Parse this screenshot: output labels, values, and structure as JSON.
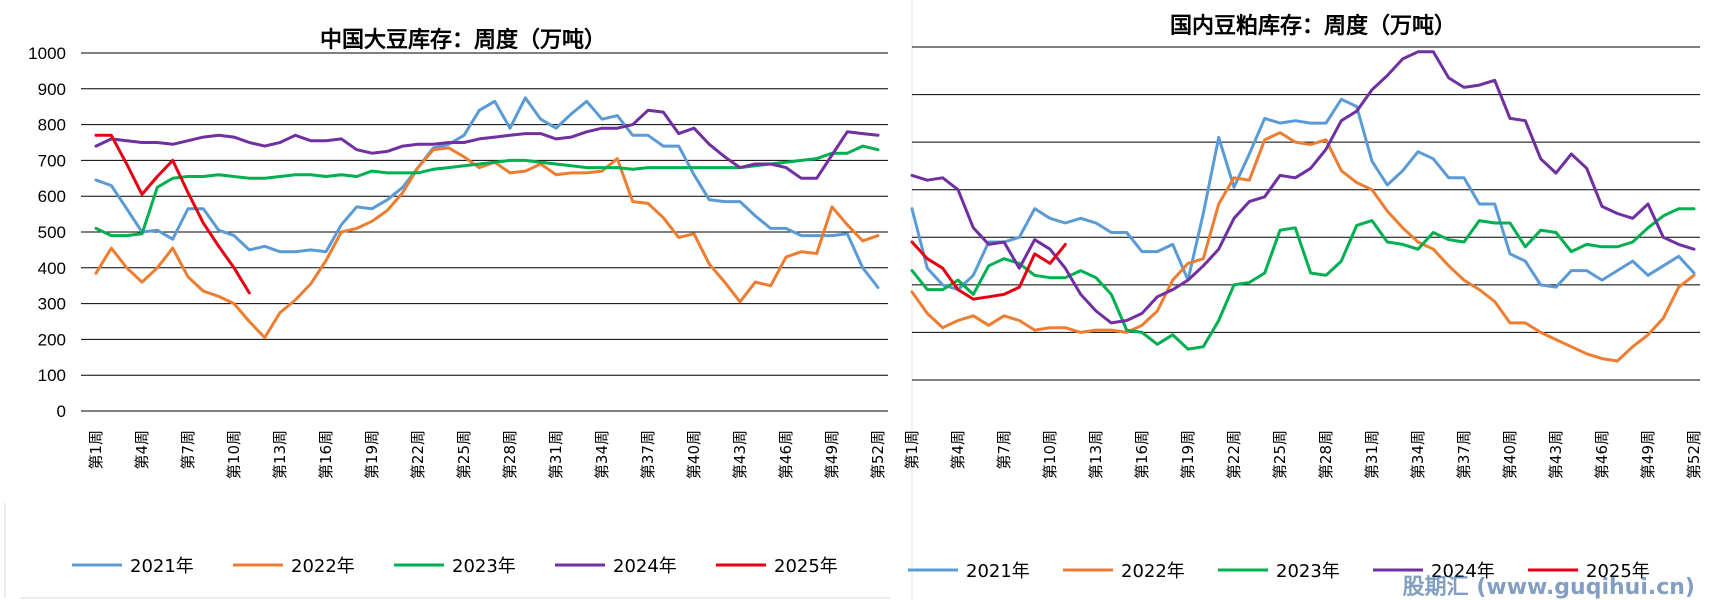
{
  "watermark": "股期汇 (www.guqihui.cn)",
  "chart_data": [
    {
      "type": "line",
      "title": "中国大豆库存：周度（万吨）",
      "ylim": [
        0,
        1000
      ],
      "yticks": [
        0,
        100,
        200,
        300,
        400,
        500,
        600,
        700,
        800,
        900,
        1000
      ],
      "grid": true,
      "legend_position": "bottom",
      "xtick_labels": [
        "第1周",
        "第4周",
        "第7周",
        "第10周",
        "第13周",
        "第16周",
        "第19周",
        "第22周",
        "第25周",
        "第28周",
        "第31周",
        "第34周",
        "第37周",
        "第40周",
        "第43周",
        "第46周",
        "第49周",
        "第52周"
      ],
      "series": [
        {
          "name": "2021年",
          "color": "#5b9bd5",
          "values": [
            645,
            630,
            565,
            500,
            505,
            480,
            565,
            565,
            505,
            490,
            450,
            460,
            445,
            445,
            450,
            445,
            520,
            570,
            565,
            590,
            625,
            680,
            735,
            745,
            770,
            840,
            865,
            790,
            875,
            815,
            790,
            830,
            865,
            815,
            825,
            770,
            770,
            740,
            740,
            660,
            590,
            585,
            585,
            545,
            510,
            510,
            490,
            490,
            490,
            495,
            400,
            345
          ]
        },
        {
          "name": "2022年",
          "color": "#ed7d31",
          "values": [
            385,
            455,
            400,
            360,
            400,
            455,
            375,
            335,
            320,
            300,
            250,
            205,
            275,
            310,
            355,
            420,
            500,
            510,
            530,
            560,
            610,
            680,
            730,
            735,
            710,
            680,
            695,
            665,
            670,
            690,
            660,
            665,
            665,
            670,
            705,
            585,
            580,
            540,
            485,
            495,
            410,
            360,
            305,
            360,
            350,
            430,
            445,
            440,
            570,
            520,
            475,
            490
          ]
        },
        {
          "name": "2023年",
          "color": "#00b050",
          "values": [
            510,
            490,
            490,
            495,
            625,
            650,
            655,
            655,
            660,
            655,
            650,
            650,
            655,
            660,
            660,
            655,
            660,
            655,
            670,
            665,
            665,
            665,
            675,
            680,
            685,
            690,
            695,
            700,
            700,
            695,
            690,
            685,
            680,
            680,
            680,
            675,
            680,
            680,
            680,
            680,
            680,
            680,
            680,
            685,
            690,
            695,
            700,
            705,
            720,
            720,
            740,
            730
          ]
        },
        {
          "name": "2024年",
          "color": "#7030a0",
          "values": [
            740,
            760,
            755,
            750,
            750,
            745,
            755,
            765,
            770,
            765,
            750,
            740,
            750,
            770,
            755,
            755,
            760,
            730,
            720,
            725,
            740,
            745,
            745,
            750,
            750,
            760,
            765,
            770,
            775,
            775,
            760,
            765,
            780,
            790,
            790,
            800,
            840,
            835,
            775,
            790,
            745,
            710,
            680,
            690,
            690,
            680,
            650,
            650,
            715,
            780,
            775,
            770
          ]
        },
        {
          "name": "2025年",
          "color": "#e60012",
          "values": [
            770,
            770,
            690,
            605,
            655,
            700,
            610,
            525,
            460,
            400,
            330,
            null,
            null,
            null,
            null,
            null,
            null,
            null,
            null,
            null,
            null,
            null,
            null,
            null,
            null,
            null,
            null,
            null,
            null,
            null,
            null,
            null,
            null,
            null,
            null,
            null,
            null,
            null,
            null,
            null,
            null,
            null,
            null,
            null,
            null,
            null,
            null,
            null,
            null,
            null,
            null,
            null
          ]
        }
      ]
    },
    {
      "type": "line",
      "title": "国内豆粕库存：周度（万吨）",
      "grid": true,
      "legend_position": "bottom",
      "ylim": [
        0,
        140
      ],
      "xtick_labels": [
        "第1周",
        "第4周",
        "第7周",
        "第10周",
        "第13周",
        "第16周",
        "第19周",
        "第22周",
        "第25周",
        "第28周",
        "第31周",
        "第34周",
        "第37周",
        "第40周",
        "第43周",
        "第46周",
        "第49周",
        "第52周"
      ],
      "series": [
        {
          "name": "2021年",
          "color": "#5b9bd5",
          "values": [
            72,
            47,
            40,
            38,
            44,
            58,
            58,
            60,
            72,
            68,
            66,
            68,
            66,
            62,
            62,
            54,
            54,
            57,
            42,
            70,
            102,
            81,
            95,
            110,
            108,
            109,
            108,
            108,
            118,
            115,
            92,
            82,
            88,
            96,
            93,
            85,
            85,
            74,
            74,
            53,
            50,
            40,
            39,
            46,
            46,
            42,
            46,
            50,
            44,
            48,
            52,
            45
          ]
        },
        {
          "name": "2022年",
          "color": "#ed7d31",
          "values": [
            37,
            28,
            22,
            25,
            27,
            23,
            27,
            25,
            21,
            22,
            22,
            20,
            21,
            21,
            20,
            23,
            29,
            42,
            49,
            51,
            74,
            85,
            84,
            101,
            104,
            100,
            99,
            101,
            88,
            83,
            80,
            71,
            64,
            58,
            55,
            48,
            42,
            38,
            33,
            24,
            24,
            20,
            17,
            14,
            11,
            9,
            8,
            14,
            19,
            26,
            39,
            44
          ]
        },
        {
          "name": "2023年",
          "color": "#00b050",
          "values": [
            46,
            38,
            38,
            42,
            36,
            48,
            51,
            49,
            44,
            43,
            43,
            46,
            43,
            36,
            21,
            20,
            15,
            19,
            13,
            14,
            25,
            40,
            41,
            45,
            63,
            64,
            45,
            44,
            50,
            65,
            67,
            58,
            57,
            55,
            62,
            59,
            58,
            67,
            66,
            66,
            56,
            63,
            62,
            54,
            57,
            56,
            56,
            58,
            64,
            69,
            72,
            72
          ]
        },
        {
          "name": "2024年",
          "color": "#7030a0",
          "values": [
            86,
            84,
            85,
            80,
            64,
            57,
            58,
            47,
            59,
            55,
            47,
            36,
            29,
            24,
            25,
            28,
            35,
            38,
            42,
            48,
            55,
            68,
            75,
            77,
            86,
            85,
            89,
            97,
            109,
            113,
            122,
            128,
            135,
            138,
            138,
            127,
            123,
            124,
            126,
            110,
            109,
            93,
            87,
            95,
            89,
            73,
            70,
            68,
            74,
            60,
            57,
            55
          ]
        },
        {
          "name": "2025年",
          "color": "#e60012",
          "values": [
            58,
            51,
            47,
            38,
            34,
            35,
            36,
            39,
            53,
            49,
            57,
            null,
            null,
            null,
            null,
            null,
            null,
            null,
            null,
            null,
            null,
            null,
            null,
            null,
            null,
            null,
            null,
            null,
            null,
            null,
            null,
            null,
            null,
            null,
            null,
            null,
            null,
            null,
            null,
            null,
            null,
            null,
            null,
            null,
            null,
            null,
            null,
            null,
            null,
            null,
            null,
            null
          ]
        }
      ]
    }
  ]
}
